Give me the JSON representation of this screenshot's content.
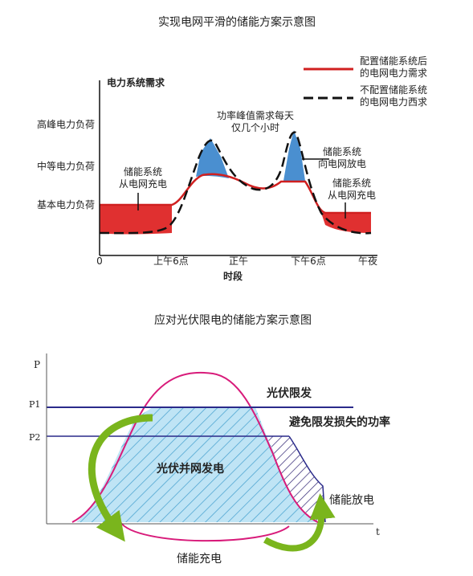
{
  "figure1": {
    "title": "实现电网平滑的储能方案示意图",
    "y_axis_title": "电力系统需求",
    "y_labels": [
      "高峰电力负荷",
      "中等电力负荷",
      "基本电力负荷"
    ],
    "x_labels": [
      "0",
      "上午6点",
      "正午",
      "下午6点",
      "午夜"
    ],
    "x_axis_title": "时段",
    "legend": [
      {
        "lines": [
          "配置储能系统后",
          "的电网电力需求"
        ]
      },
      {
        "lines": [
          "不配置储能系统",
          "的电网电力西求"
        ]
      }
    ],
    "annotations": {
      "peak": [
        "功率峰值需求每天",
        "仅几个小时"
      ],
      "discharge": [
        "储能系统",
        "向电网放电"
      ],
      "charge_left": [
        "储能系统",
        "从电网充电"
      ],
      "charge_right": [
        "储能系统",
        "从电网充电"
      ]
    }
  },
  "figure2": {
    "title": "应对光伏限电的储能方案示意图",
    "y_axis": "P",
    "x_axis": "t",
    "p1": "P1",
    "p2": "P2",
    "curtail": "光伏限发",
    "avoid_loss": "避免限发损失的功率",
    "grid_gen": "光伏并网发电",
    "discharge": "储能放电",
    "charge": "储能充电"
  }
}
